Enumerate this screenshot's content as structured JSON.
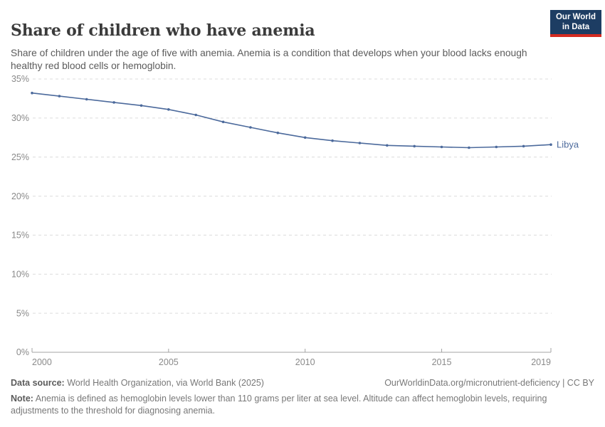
{
  "logo": {
    "line1": "Our World",
    "line2": "in Data"
  },
  "chart_data": {
    "type": "line",
    "title": "Share of children who have anemia",
    "subtitle": "Share of children under the age of five with anemia. Anemia is a condition that develops when your blood lacks enough healthy red blood cells or hemoglobin.",
    "x": [
      2000,
      2001,
      2002,
      2003,
      2004,
      2005,
      2006,
      2007,
      2008,
      2009,
      2010,
      2011,
      2012,
      2013,
      2014,
      2015,
      2016,
      2017,
      2018,
      2019
    ],
    "series": [
      {
        "name": "Libya",
        "color": "#4C6A9C",
        "values": [
          33.2,
          32.8,
          32.4,
          32.0,
          31.6,
          31.1,
          30.4,
          29.5,
          28.8,
          28.1,
          27.5,
          27.1,
          26.8,
          26.5,
          26.4,
          26.3,
          26.2,
          26.3,
          26.4,
          26.6
        ]
      }
    ],
    "xlim": [
      2000,
      2019
    ],
    "ylim": [
      0,
      35
    ],
    "x_ticks": [
      2000,
      2005,
      2010,
      2015,
      2019
    ],
    "y_ticks": [
      0,
      5,
      10,
      15,
      20,
      25,
      30,
      35
    ],
    "y_tick_suffix": "%",
    "grid": "horizontal-dashed",
    "legend_position": "end-of-line",
    "xlabel": "",
    "ylabel": ""
  },
  "footer": {
    "datasource_label": "Data source:",
    "datasource_text": "World Health Organization, via World Bank (2025)",
    "link": "OurWorldinData.org/micronutrient-deficiency | CC BY",
    "note_label": "Note:",
    "note_text": "Anemia is defined as hemoglobin levels lower than 110 grams per liter at sea level. Altitude can affect hemoglobin levels, requiring adjustments to the threshold for diagnosing anemia."
  },
  "colors": {
    "line": "#4C6A9C",
    "logo_bg": "#1d3d63",
    "logo_accent": "#d42b21",
    "gridline": "#dcdcdc",
    "axis": "#a3a3a3",
    "tick_label": "#8a8a8a"
  }
}
